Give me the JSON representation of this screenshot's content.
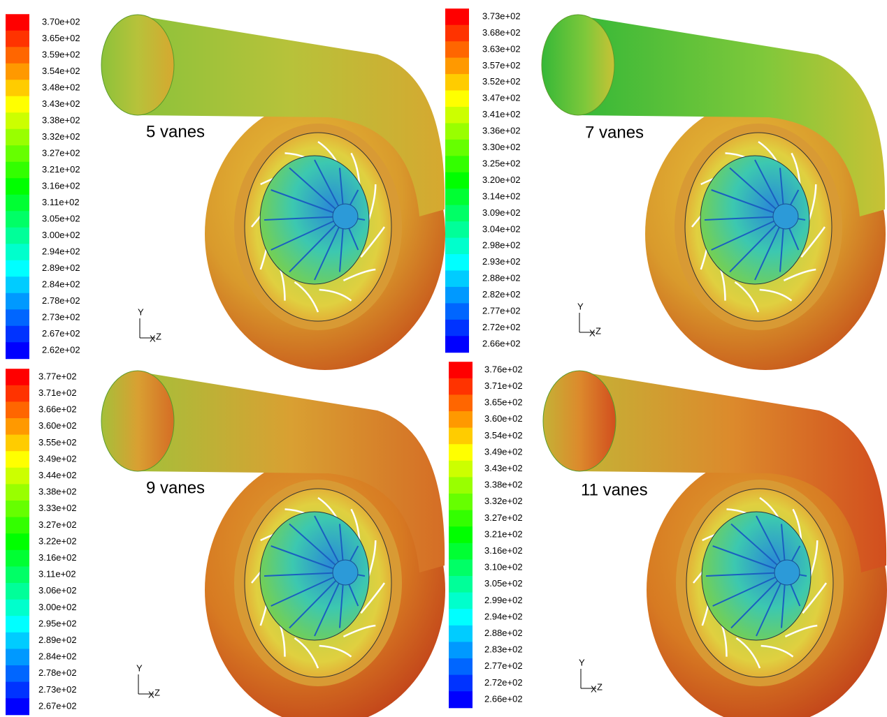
{
  "panels": [
    {
      "caption": "5 vanes",
      "axes": {
        "y": "Y",
        "x": "X",
        "z": "Z"
      },
      "legend": [
        "3.70e+02",
        "3.65e+02",
        "3.59e+02",
        "3.54e+02",
        "3.48e+02",
        "3.43e+02",
        "3.38e+02",
        "3.32e+02",
        "3.27e+02",
        "3.21e+02",
        "3.16e+02",
        "3.11e+02",
        "3.05e+02",
        "3.00e+02",
        "2.94e+02",
        "2.89e+02",
        "2.84e+02",
        "2.78e+02",
        "2.73e+02",
        "2.67e+02",
        "2.62e+02"
      ]
    },
    {
      "caption": "7 vanes",
      "axes": {
        "y": "Y",
        "x": "X",
        "z": "Z"
      },
      "legend": [
        "3.73e+02",
        "3.68e+02",
        "3.63e+02",
        "3.57e+02",
        "3.52e+02",
        "3.47e+02",
        "3.41e+02",
        "3.36e+02",
        "3.30e+02",
        "3.25e+02",
        "3.20e+02",
        "3.14e+02",
        "3.09e+02",
        "3.04e+02",
        "2.98e+02",
        "2.93e+02",
        "2.88e+02",
        "2.82e+02",
        "2.77e+02",
        "2.72e+02",
        "2.66e+02"
      ]
    },
    {
      "caption": "9 vanes",
      "axes": {
        "y": "Y",
        "x": "X",
        "z": "Z"
      },
      "legend": [
        "3.77e+02",
        "3.71e+02",
        "3.66e+02",
        "3.60e+02",
        "3.55e+02",
        "3.49e+02",
        "3.44e+02",
        "3.38e+02",
        "3.33e+02",
        "3.27e+02",
        "3.22e+02",
        "3.16e+02",
        "3.11e+02",
        "3.06e+02",
        "3.00e+02",
        "2.95e+02",
        "2.89e+02",
        "2.84e+02",
        "2.78e+02",
        "2.73e+02",
        "2.67e+02"
      ]
    },
    {
      "caption": "11 vanes",
      "axes": {
        "y": "Y",
        "x": "X",
        "z": "Z"
      },
      "legend": [
        "3.76e+02",
        "3.71e+02",
        "3.65e+02",
        "3.60e+02",
        "3.54e+02",
        "3.49e+02",
        "3.43e+02",
        "3.38e+02",
        "3.32e+02",
        "3.27e+02",
        "3.21e+02",
        "3.16e+02",
        "3.10e+02",
        "3.05e+02",
        "2.99e+02",
        "2.94e+02",
        "2.88e+02",
        "2.83e+02",
        "2.77e+02",
        "2.72e+02",
        "2.66e+02"
      ]
    }
  ]
}
